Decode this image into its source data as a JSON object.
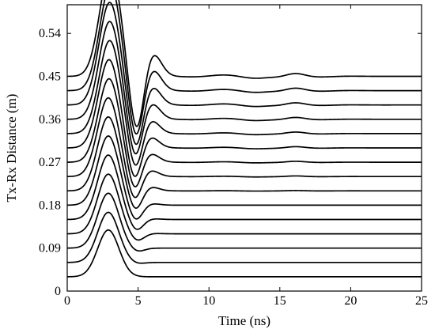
{
  "chart_data": {
    "type": "line",
    "title": "",
    "xlabel": "Time (ns)",
    "ylabel": "Tx-Rx Distance (m)",
    "xlim": [
      0,
      25
    ],
    "ylim": [
      0,
      0.6
    ],
    "xticks": [
      0,
      5,
      10,
      15,
      20,
      25
    ],
    "xtick_labels": [
      "0",
      "5",
      "10",
      "15",
      "20",
      "25"
    ],
    "yticks": [
      0,
      0.09,
      0.18,
      0.27,
      0.36,
      0.45,
      0.54
    ],
    "ytick_labels": [
      "0",
      "0.09",
      "0.18",
      "0.27",
      "0.36",
      "0.45",
      "0.54"
    ],
    "grid": false,
    "legend": "none",
    "trace_style": "wiggle traces offset by Tx-Rx distance",
    "series": [
      {
        "offset": 0.03,
        "peak_time": 2.9,
        "peak_amplitude": 0.098,
        "trough_time": 4.9,
        "trough_amplitude": 0.0,
        "reflection_time": 6.0,
        "reflection_amplitude": 0.0
      },
      {
        "offset": 0.06,
        "peak_time": 2.9,
        "peak_amplitude": 0.105,
        "trough_time": 4.9,
        "trough_amplitude": -0.003,
        "reflection_time": 6.0,
        "reflection_amplitude": 0.0
      },
      {
        "offset": 0.09,
        "peak_time": 2.9,
        "peak_amplitude": 0.115,
        "trough_time": 4.9,
        "trough_amplitude": -0.008,
        "reflection_time": 6.0,
        "reflection_amplitude": 0.0
      },
      {
        "offset": 0.12,
        "peak_time": 2.9,
        "peak_amplitude": 0.125,
        "trough_time": 4.9,
        "trough_amplitude": -0.016,
        "reflection_time": 5.9,
        "reflection_amplitude": 0.001
      },
      {
        "offset": 0.15,
        "peak_time": 2.9,
        "peak_amplitude": 0.135,
        "trough_time": 4.85,
        "trough_amplitude": -0.025,
        "reflection_time": 5.85,
        "reflection_amplitude": 0.002
      },
      {
        "offset": 0.18,
        "peak_time": 2.9,
        "peak_amplitude": 0.145,
        "trough_time": 4.8,
        "trough_amplitude": -0.035,
        "reflection_time": 5.8,
        "reflection_amplitude": 0.004
      },
      {
        "offset": 0.21,
        "peak_time": 2.9,
        "peak_amplitude": 0.155,
        "trough_time": 4.8,
        "trough_amplitude": -0.045,
        "reflection_time": 5.75,
        "reflection_amplitude": 0.01
      },
      {
        "offset": 0.24,
        "peak_time": 2.9,
        "peak_amplitude": 0.165,
        "trough_time": 4.75,
        "trough_amplitude": -0.055,
        "reflection_time": 5.75,
        "reflection_amplitude": 0.015
      },
      {
        "offset": 0.27,
        "peak_time": 2.95,
        "peak_amplitude": 0.175,
        "trough_time": 4.75,
        "trough_amplitude": -0.065,
        "reflection_time": 5.8,
        "reflection_amplitude": 0.02
      },
      {
        "offset": 0.3,
        "peak_time": 2.95,
        "peak_amplitude": 0.185,
        "trough_time": 4.75,
        "trough_amplitude": -0.075,
        "reflection_time": 5.8,
        "reflection_amplitude": 0.025
      },
      {
        "offset": 0.33,
        "peak_time": 3.0,
        "peak_amplitude": 0.195,
        "trough_time": 4.8,
        "trough_amplitude": -0.083,
        "reflection_time": 5.85,
        "reflection_amplitude": 0.03
      },
      {
        "offset": 0.36,
        "peak_time": 3.0,
        "peak_amplitude": 0.205,
        "trough_time": 4.8,
        "trough_amplitude": -0.09,
        "reflection_time": 5.9,
        "reflection_amplitude": 0.035
      },
      {
        "offset": 0.39,
        "peak_time": 3.0,
        "peak_amplitude": 0.215,
        "trough_time": 4.85,
        "trough_amplitude": -0.1,
        "reflection_time": 5.95,
        "reflection_amplitude": 0.04
      },
      {
        "offset": 0.42,
        "peak_time": 3.05,
        "peak_amplitude": 0.22,
        "trough_time": 4.85,
        "trough_amplitude": -0.11,
        "reflection_time": 6.0,
        "reflection_amplitude": 0.045
      },
      {
        "offset": 0.45,
        "peak_time": 3.05,
        "peak_amplitude": 0.225,
        "trough_time": 4.9,
        "trough_amplitude": -0.125,
        "reflection_time": 6.0,
        "reflection_amplitude": 0.05
      }
    ]
  }
}
